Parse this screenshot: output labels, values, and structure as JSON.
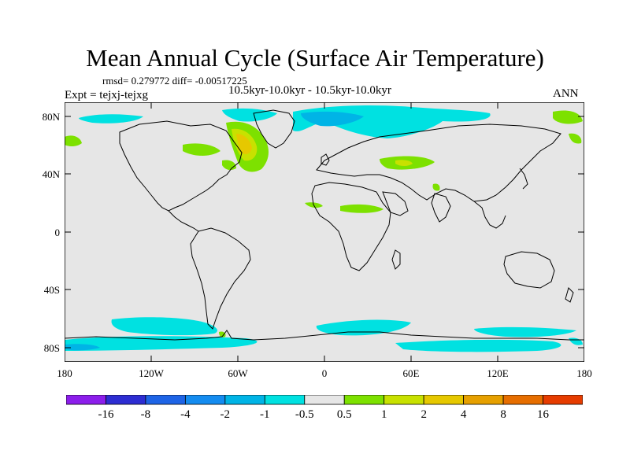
{
  "title": "Mean Annual Cycle (Surface Air Temperature)",
  "stats": "rmsd= 0.279772 diff= -0.00517225",
  "period": "10.5kyr-10.0kyr - 10.5kyr-10.0kyr",
  "experiment": "Expt = tejxj-tejxg",
  "season": "ANN",
  "colors": {
    "background_land_ocean": "#e6e6e6",
    "coastline": "#000000",
    "field_neg_0_5_to_1": "#00e1e1",
    "field_neg_1_to_2": "#00b4e6",
    "field_pos_0_5_to_1": "#7de100",
    "field_pos_1_to_2": "#c8e100",
    "field_pos_2_to_4": "#e6c800"
  },
  "map": {
    "projection": "cylindrical-equidistant",
    "lon_range": [
      -180,
      180
    ],
    "lat_range": [
      -90,
      90
    ],
    "lat_labels": [
      "80N",
      "40N",
      "0",
      "40S",
      "80S"
    ],
    "lon_labels": [
      "180",
      "120W",
      "60W",
      "0",
      "60E",
      "120E",
      "180"
    ]
  },
  "colorbar": {
    "colors": [
      "#8c1eeb",
      "#2d2dd2",
      "#1e64e6",
      "#148cf0",
      "#00b4e6",
      "#00e1e1",
      "#e6e6e6",
      "#7de100",
      "#c8e100",
      "#e6c800",
      "#e6a000",
      "#e66e00",
      "#e63c00"
    ],
    "labels": [
      "-16",
      "-8",
      "-4",
      "-2",
      "-1",
      "-0.5",
      "0.5",
      "1",
      "2",
      "4",
      "8",
      "16"
    ]
  }
}
